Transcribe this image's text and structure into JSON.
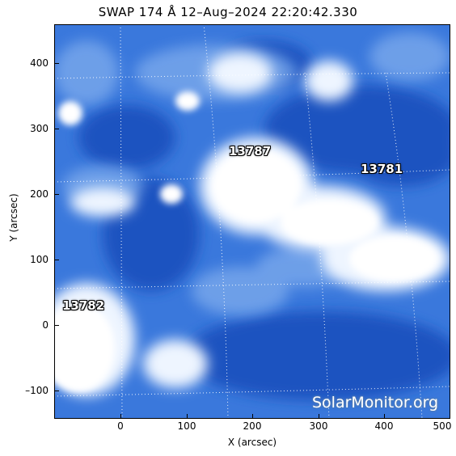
{
  "title": "SWAP 174 Å 12–Aug–2024 22:20:42.330",
  "x_axis": {
    "label": "X (arcsec)",
    "ticks": [
      "0",
      "100",
      "200",
      "300",
      "400",
      "500"
    ]
  },
  "y_axis": {
    "label": "Y (arcsec)",
    "ticks": [
      "400",
      "300",
      "200",
      "100",
      "0",
      "–100"
    ]
  },
  "regions": [
    {
      "id": "13787",
      "label": "13787"
    },
    {
      "id": "13781",
      "label": "13781"
    },
    {
      "id": "13782",
      "label": "13782"
    }
  ],
  "watermark": "SolarMonitor.org",
  "colors": {
    "dark_blue": "#1a56c4",
    "mid_blue": "#3f7fe0",
    "light": "#d8e8fb",
    "white": "#ffffff"
  }
}
